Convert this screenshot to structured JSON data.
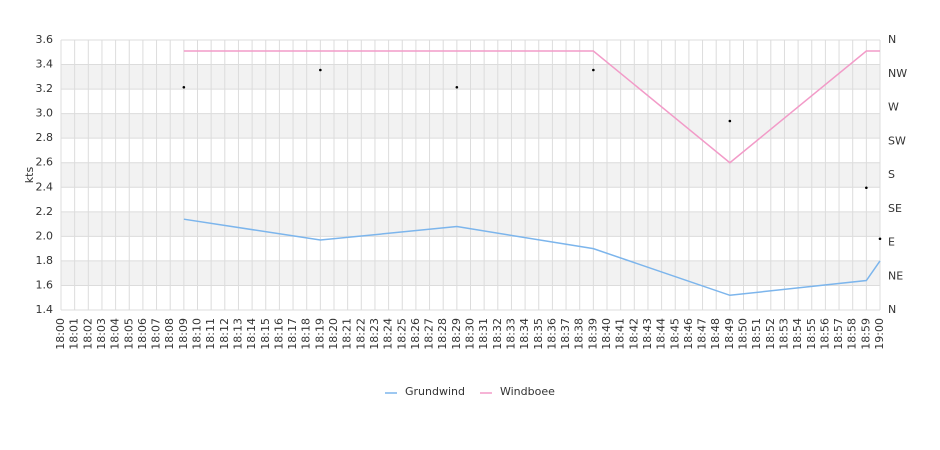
{
  "chart_data": {
    "type": "line",
    "y_axis_label": "kts",
    "categories": [
      "18:00",
      "18:01",
      "18:02",
      "18:03",
      "18:04",
      "18:05",
      "18:06",
      "18:07",
      "18:08",
      "18:09",
      "18:10",
      "18:11",
      "18:12",
      "18:13",
      "18:14",
      "18:15",
      "18:16",
      "18:17",
      "18:18",
      "18:19",
      "18:20",
      "18:21",
      "18:22",
      "18:23",
      "18:24",
      "18:25",
      "18:26",
      "18:27",
      "18:28",
      "18:29",
      "18:30",
      "18:31",
      "18:32",
      "18:33",
      "18:34",
      "18:35",
      "18:36",
      "18:37",
      "18:38",
      "18:39",
      "18:40",
      "18:41",
      "18:42",
      "18:43",
      "18:44",
      "18:45",
      "18:46",
      "18:47",
      "18:48",
      "18:49",
      "18:50",
      "18:51",
      "18:52",
      "18:53",
      "18:54",
      "18:55",
      "18:56",
      "18:57",
      "18:58",
      "18:59",
      "19:00"
    ],
    "series": [
      {
        "name": "Grundwind",
        "color": "#7cb5ec",
        "x": [
          "18:09",
          "18:19",
          "18:29",
          "18:39",
          "18:49",
          "18:59",
          "19:00"
        ],
        "values": [
          2.14,
          1.97,
          2.08,
          1.9,
          1.52,
          1.64,
          1.8
        ]
      },
      {
        "name": "Windboee",
        "color": "#f29bc8",
        "x": [
          "18:09",
          "18:19",
          "18:29",
          "18:39",
          "18:49",
          "18:59",
          "19:00"
        ],
        "values": [
          3.51,
          3.51,
          3.51,
          3.51,
          2.6,
          3.51,
          3.51
        ]
      },
      {
        "axis": "y2",
        "marker": "dot",
        "color": "#000000",
        "x": [
          "18:09",
          "18:19",
          "18:29",
          "18:39",
          "18:49",
          "18:59",
          "19:00"
        ],
        "values": [
          297,
          320,
          297,
          320,
          252,
          163,
          95
        ]
      }
    ],
    "ylim": [
      1.4,
      3.6
    ],
    "yticks": [
      1.4,
      1.6,
      1.8,
      {
        "value": 2,
        "label": "2.0"
      },
      2.2,
      2.4,
      2.6,
      2.8,
      {
        "value": 3,
        "label": "3.0"
      },
      3.2,
      3.4,
      3.6
    ],
    "y2lim": [
      0,
      360
    ],
    "y2ticks": [
      {
        "value": 0,
        "label": "N"
      },
      {
        "value": 45,
        "label": "NE"
      },
      {
        "value": 90,
        "label": "E"
      },
      {
        "value": 135,
        "label": "SE"
      },
      {
        "value": 180,
        "label": "S"
      },
      {
        "value": 225,
        "label": "SW"
      },
      {
        "value": 270,
        "label": "W"
      },
      {
        "value": 315,
        "label": "NW"
      },
      {
        "value": 360,
        "label": "N"
      }
    ],
    "grid": true
  }
}
